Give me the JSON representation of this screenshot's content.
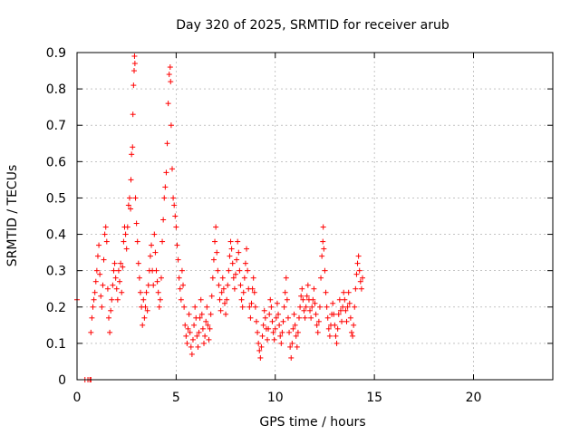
{
  "chart_data": {
    "type": "scatter",
    "title": "Day 320 of 2025, SRMTID for receiver arub",
    "xlabel": "GPS time / hours",
    "ylabel": "SRMTID / TECUs",
    "xlim": [
      0,
      24
    ],
    "ylim": [
      0,
      0.9
    ],
    "xticks": [
      0,
      5,
      10,
      15,
      20
    ],
    "xtick_labels": [
      "0",
      "5",
      "10",
      "15",
      "20"
    ],
    "yticks": [
      0,
      0.1,
      0.2,
      0.3,
      0.4,
      0.5,
      0.6,
      0.7,
      0.8,
      0.9
    ],
    "ytick_labels": [
      "0",
      "0.1",
      "0.2",
      "0.3",
      "0.4",
      "0.5",
      "0.6",
      "0.7",
      "0.8",
      "0.9"
    ],
    "grid": true,
    "marker": "plus",
    "color": "#ff0000",
    "series": [
      {
        "name": "SRMTID",
        "points": [
          [
            0.0,
            0.22
          ],
          [
            0.4,
            0.0
          ],
          [
            0.55,
            0.0
          ],
          [
            0.65,
            0.0
          ],
          [
            0.7,
            0.0
          ],
          [
            0.7,
            0.13
          ],
          [
            0.75,
            0.17
          ],
          [
            0.8,
            0.2
          ],
          [
            0.85,
            0.22
          ],
          [
            0.9,
            0.24
          ],
          [
            0.95,
            0.27
          ],
          [
            1.0,
            0.3
          ],
          [
            1.05,
            0.34
          ],
          [
            1.1,
            0.37
          ],
          [
            1.15,
            0.29
          ],
          [
            1.2,
            0.23
          ],
          [
            1.25,
            0.2
          ],
          [
            1.3,
            0.26
          ],
          [
            1.35,
            0.33
          ],
          [
            1.4,
            0.4
          ],
          [
            1.45,
            0.42
          ],
          [
            1.5,
            0.38
          ],
          [
            1.55,
            0.25
          ],
          [
            1.6,
            0.17
          ],
          [
            1.65,
            0.13
          ],
          [
            1.7,
            0.19
          ],
          [
            1.75,
            0.22
          ],
          [
            1.8,
            0.26
          ],
          [
            1.85,
            0.3
          ],
          [
            1.9,
            0.32
          ],
          [
            1.95,
            0.28
          ],
          [
            2.0,
            0.25
          ],
          [
            2.05,
            0.22
          ],
          [
            2.1,
            0.3
          ],
          [
            2.15,
            0.27
          ],
          [
            2.2,
            0.32
          ],
          [
            2.25,
            0.24
          ],
          [
            2.3,
            0.31
          ],
          [
            2.35,
            0.38
          ],
          [
            2.4,
            0.42
          ],
          [
            2.45,
            0.4
          ],
          [
            2.5,
            0.36
          ],
          [
            2.55,
            0.42
          ],
          [
            2.6,
            0.48
          ],
          [
            2.65,
            0.5
          ],
          [
            2.7,
            0.47
          ],
          [
            2.72,
            0.55
          ],
          [
            2.75,
            0.62
          ],
          [
            2.8,
            0.64
          ],
          [
            2.82,
            0.73
          ],
          [
            2.85,
            0.81
          ],
          [
            2.88,
            0.85
          ],
          [
            2.9,
            0.89
          ],
          [
            2.92,
            0.87
          ],
          [
            2.95,
            0.5
          ],
          [
            3.0,
            0.43
          ],
          [
            3.05,
            0.38
          ],
          [
            3.1,
            0.32
          ],
          [
            3.15,
            0.28
          ],
          [
            3.2,
            0.24
          ],
          [
            3.25,
            0.2
          ],
          [
            3.3,
            0.15
          ],
          [
            3.35,
            0.22
          ],
          [
            3.4,
            0.17
          ],
          [
            3.45,
            0.2
          ],
          [
            3.5,
            0.24
          ],
          [
            3.55,
            0.19
          ],
          [
            3.6,
            0.26
          ],
          [
            3.65,
            0.3
          ],
          [
            3.7,
            0.34
          ],
          [
            3.75,
            0.37
          ],
          [
            3.8,
            0.3
          ],
          [
            3.85,
            0.26
          ],
          [
            3.9,
            0.4
          ],
          [
            3.95,
            0.35
          ],
          [
            4.0,
            0.3
          ],
          [
            4.05,
            0.27
          ],
          [
            4.1,
            0.24
          ],
          [
            4.15,
            0.2
          ],
          [
            4.2,
            0.22
          ],
          [
            4.25,
            0.28
          ],
          [
            4.3,
            0.38
          ],
          [
            4.35,
            0.44
          ],
          [
            4.4,
            0.5
          ],
          [
            4.45,
            0.53
          ],
          [
            4.5,
            0.57
          ],
          [
            4.55,
            0.65
          ],
          [
            4.6,
            0.76
          ],
          [
            4.65,
            0.84
          ],
          [
            4.7,
            0.86
          ],
          [
            4.72,
            0.82
          ],
          [
            4.75,
            0.7
          ],
          [
            4.8,
            0.58
          ],
          [
            4.85,
            0.5
          ],
          [
            4.9,
            0.48
          ],
          [
            4.95,
            0.45
          ],
          [
            5.0,
            0.42
          ],
          [
            5.05,
            0.37
          ],
          [
            5.1,
            0.33
          ],
          [
            5.15,
            0.28
          ],
          [
            5.2,
            0.25
          ],
          [
            5.25,
            0.22
          ],
          [
            5.3,
            0.3
          ],
          [
            5.35,
            0.26
          ],
          [
            5.4,
            0.2
          ],
          [
            5.45,
            0.15
          ],
          [
            5.5,
            0.12
          ],
          [
            5.55,
            0.1
          ],
          [
            5.6,
            0.14
          ],
          [
            5.65,
            0.18
          ],
          [
            5.7,
            0.13
          ],
          [
            5.75,
            0.09
          ],
          [
            5.8,
            0.07
          ],
          [
            5.85,
            0.11
          ],
          [
            5.9,
            0.15
          ],
          [
            5.95,
            0.2
          ],
          [
            6.0,
            0.17
          ],
          [
            6.05,
            0.12
          ],
          [
            6.1,
            0.09
          ],
          [
            6.15,
            0.13
          ],
          [
            6.2,
            0.17
          ],
          [
            6.25,
            0.22
          ],
          [
            6.3,
            0.18
          ],
          [
            6.35,
            0.14
          ],
          [
            6.4,
            0.1
          ],
          [
            6.45,
            0.12
          ],
          [
            6.5,
            0.16
          ],
          [
            6.55,
            0.2
          ],
          [
            6.6,
            0.15
          ],
          [
            6.65,
            0.11
          ],
          [
            6.7,
            0.14
          ],
          [
            6.75,
            0.18
          ],
          [
            6.8,
            0.23
          ],
          [
            6.85,
            0.28
          ],
          [
            6.9,
            0.33
          ],
          [
            6.95,
            0.38
          ],
          [
            7.0,
            0.42
          ],
          [
            7.05,
            0.35
          ],
          [
            7.1,
            0.3
          ],
          [
            7.15,
            0.26
          ],
          [
            7.2,
            0.22
          ],
          [
            7.25,
            0.19
          ],
          [
            7.3,
            0.24
          ],
          [
            7.35,
            0.28
          ],
          [
            7.4,
            0.25
          ],
          [
            7.45,
            0.21
          ],
          [
            7.5,
            0.18
          ],
          [
            7.55,
            0.22
          ],
          [
            7.6,
            0.26
          ],
          [
            7.65,
            0.3
          ],
          [
            7.7,
            0.34
          ],
          [
            7.75,
            0.38
          ],
          [
            7.8,
            0.36
          ],
          [
            7.85,
            0.32
          ],
          [
            7.9,
            0.28
          ],
          [
            7.95,
            0.25
          ],
          [
            8.0,
            0.29
          ],
          [
            8.05,
            0.33
          ],
          [
            8.1,
            0.38
          ],
          [
            8.15,
            0.35
          ],
          [
            8.2,
            0.3
          ],
          [
            8.25,
            0.26
          ],
          [
            8.3,
            0.22
          ],
          [
            8.35,
            0.2
          ],
          [
            8.4,
            0.24
          ],
          [
            8.45,
            0.28
          ],
          [
            8.5,
            0.32
          ],
          [
            8.55,
            0.36
          ],
          [
            8.6,
            0.3
          ],
          [
            8.65,
            0.25
          ],
          [
            8.7,
            0.2
          ],
          [
            8.75,
            0.17
          ],
          [
            8.8,
            0.21
          ],
          [
            8.85,
            0.25
          ],
          [
            8.9,
            0.28
          ],
          [
            8.95,
            0.24
          ],
          [
            9.0,
            0.2
          ],
          [
            9.05,
            0.16
          ],
          [
            9.1,
            0.13
          ],
          [
            9.15,
            0.1
          ],
          [
            9.2,
            0.08
          ],
          [
            9.25,
            0.06
          ],
          [
            9.3,
            0.09
          ],
          [
            9.35,
            0.12
          ],
          [
            9.4,
            0.15
          ],
          [
            9.45,
            0.19
          ],
          [
            9.5,
            0.17
          ],
          [
            9.55,
            0.14
          ],
          [
            9.6,
            0.11
          ],
          [
            9.65,
            0.14
          ],
          [
            9.7,
            0.18
          ],
          [
            9.75,
            0.22
          ],
          [
            9.8,
            0.2
          ],
          [
            9.85,
            0.16
          ],
          [
            9.9,
            0.13
          ],
          [
            9.95,
            0.11
          ],
          [
            10.0,
            0.14
          ],
          [
            10.05,
            0.17
          ],
          [
            10.1,
            0.21
          ],
          [
            10.15,
            0.18
          ],
          [
            10.2,
            0.15
          ],
          [
            10.25,
            0.12
          ],
          [
            10.3,
            0.1
          ],
          [
            10.35,
            0.13
          ],
          [
            10.4,
            0.16
          ],
          [
            10.45,
            0.2
          ],
          [
            10.5,
            0.24
          ],
          [
            10.55,
            0.28
          ],
          [
            10.6,
            0.22
          ],
          [
            10.65,
            0.17
          ],
          [
            10.7,
            0.13
          ],
          [
            10.75,
            0.09
          ],
          [
            10.8,
            0.06
          ],
          [
            10.85,
            0.1
          ],
          [
            10.9,
            0.14
          ],
          [
            10.95,
            0.18
          ],
          [
            11.0,
            0.15
          ],
          [
            11.05,
            0.12
          ],
          [
            11.1,
            0.09
          ],
          [
            11.15,
            0.13
          ],
          [
            11.2,
            0.17
          ],
          [
            11.25,
            0.2
          ],
          [
            11.3,
            0.23
          ],
          [
            11.35,
            0.25
          ],
          [
            11.4,
            0.22
          ],
          [
            11.45,
            0.19
          ],
          [
            11.5,
            0.17
          ],
          [
            11.55,
            0.2
          ],
          [
            11.6,
            0.23
          ],
          [
            11.65,
            0.26
          ],
          [
            11.7,
            0.22
          ],
          [
            11.75,
            0.19
          ],
          [
            11.8,
            0.17
          ],
          [
            11.85,
            0.2
          ],
          [
            11.9,
            0.22
          ],
          [
            11.95,
            0.25
          ],
          [
            12.0,
            0.21
          ],
          [
            12.05,
            0.18
          ],
          [
            12.1,
            0.15
          ],
          [
            12.15,
            0.13
          ],
          [
            12.2,
            0.16
          ],
          [
            12.25,
            0.2
          ],
          [
            12.3,
            0.28
          ],
          [
            12.35,
            0.34
          ],
          [
            12.4,
            0.38
          ],
          [
            12.42,
            0.42
          ],
          [
            12.45,
            0.36
          ],
          [
            12.5,
            0.3
          ],
          [
            12.55,
            0.24
          ],
          [
            12.6,
            0.2
          ],
          [
            12.65,
            0.17
          ],
          [
            12.7,
            0.14
          ],
          [
            12.75,
            0.12
          ],
          [
            12.8,
            0.15
          ],
          [
            12.85,
            0.18
          ],
          [
            12.9,
            0.21
          ],
          [
            12.95,
            0.18
          ],
          [
            13.0,
            0.15
          ],
          [
            13.05,
            0.12
          ],
          [
            13.1,
            0.1
          ],
          [
            13.15,
            0.14
          ],
          [
            13.2,
            0.18
          ],
          [
            13.25,
            0.22
          ],
          [
            13.3,
            0.19
          ],
          [
            13.35,
            0.16
          ],
          [
            13.4,
            0.2
          ],
          [
            13.45,
            0.24
          ],
          [
            13.5,
            0.22
          ],
          [
            13.55,
            0.19
          ],
          [
            13.6,
            0.16
          ],
          [
            13.65,
            0.2
          ],
          [
            13.7,
            0.24
          ],
          [
            13.75,
            0.21
          ],
          [
            13.8,
            0.17
          ],
          [
            13.85,
            0.13
          ],
          [
            13.9,
            0.12
          ],
          [
            13.95,
            0.15
          ],
          [
            14.0,
            0.2
          ],
          [
            14.05,
            0.25
          ],
          [
            14.1,
            0.29
          ],
          [
            14.15,
            0.32
          ],
          [
            14.2,
            0.34
          ],
          [
            14.25,
            0.3
          ],
          [
            14.3,
            0.27
          ],
          [
            14.35,
            0.25
          ],
          [
            14.4,
            0.28
          ]
        ]
      }
    ]
  }
}
